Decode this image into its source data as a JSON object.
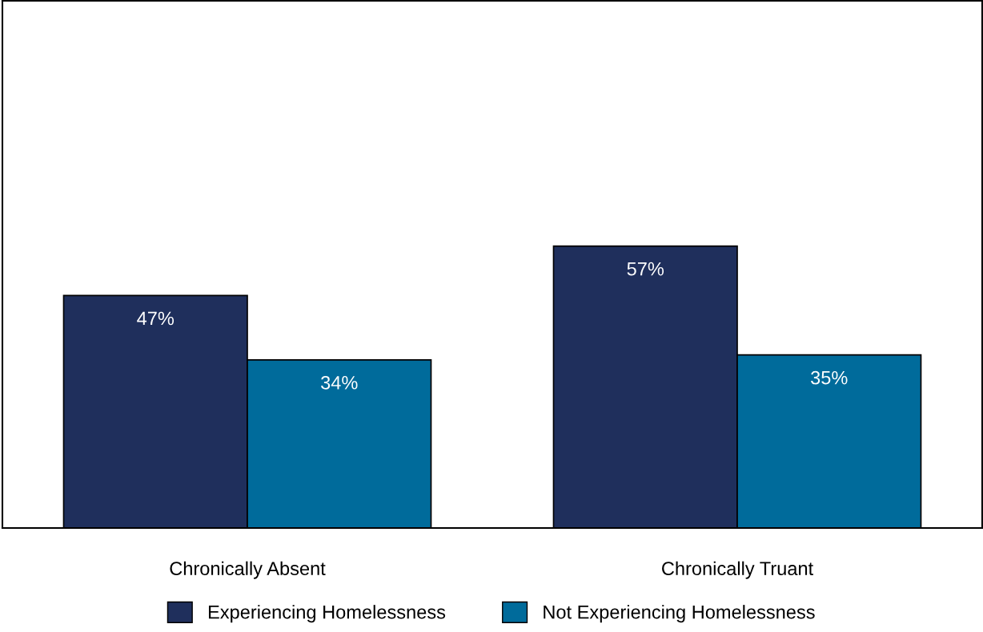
{
  "chart_data": {
    "type": "bar",
    "categories": [
      "Chronically Absent",
      "Chronically Truant"
    ],
    "series": [
      {
        "name": "Experiencing Homelessness",
        "color": "#1f2f5c",
        "values": [
          47,
          57
        ],
        "value_labels": [
          "47%",
          "57%"
        ]
      },
      {
        "name": "Not Experiencing Homelessness",
        "color": "#006b9b",
        "values": [
          34,
          35
        ],
        "value_labels": [
          "34%",
          "35%"
        ]
      }
    ],
    "tick_labels": "x",
    "grid": false,
    "legend": "bottom"
  }
}
